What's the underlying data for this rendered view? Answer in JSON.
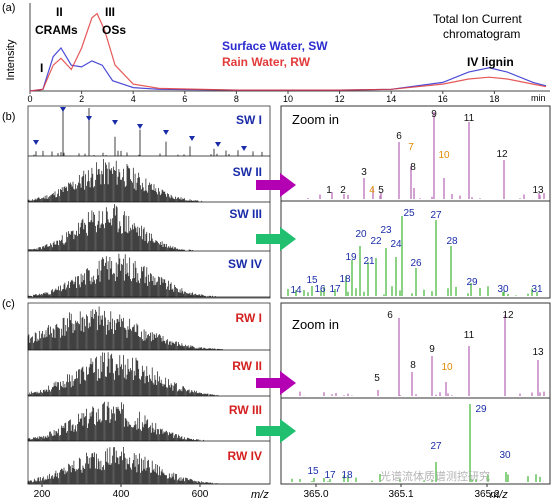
{
  "panel_a": {
    "label": "(a)",
    "ylabel": "Intensity",
    "peak_I": "I",
    "peak_II": "II",
    "peak_II_sub": "CRAMs",
    "peak_III": "III",
    "peak_III_sub": "OSs",
    "peak_IV": "IV lignin",
    "title_line1": "Total Ion Current",
    "title_line2": "chromatogram",
    "legend_sw": "Surface Water, SW",
    "legend_rw": "Rain Water, RW",
    "x_ticks": [
      "0",
      "2",
      "4",
      "6",
      "8",
      "10",
      "12",
      "14",
      "16",
      "18"
    ],
    "x_unit": "min",
    "colors": {
      "sw": "#2b2bd0",
      "rw": "#e23b3b"
    },
    "chart_data": {
      "type": "line",
      "xlim": [
        0,
        20
      ],
      "series": [
        {
          "name": "Surface Water, SW",
          "x": [
            0,
            0.5,
            0.9,
            1.2,
            1.6,
            2.0,
            2.4,
            2.8,
            3.2,
            4,
            5,
            8,
            12,
            14,
            16,
            17,
            17.8,
            18.5,
            19.5,
            20
          ],
          "y": [
            0,
            2,
            40,
            50,
            30,
            28,
            35,
            30,
            12,
            4,
            2,
            1,
            1,
            2,
            10,
            22,
            27,
            22,
            10,
            6
          ]
        },
        {
          "name": "Rain Water, RW",
          "x": [
            0,
            0.5,
            0.9,
            1.2,
            1.6,
            2.0,
            2.4,
            2.6,
            2.9,
            3.3,
            4,
            5,
            8,
            12,
            14,
            16,
            17,
            17.8,
            18.5,
            19.5,
            20
          ],
          "y": [
            0,
            2,
            30,
            38,
            25,
            50,
            85,
            90,
            70,
            30,
            8,
            3,
            1,
            1,
            2,
            8,
            14,
            16,
            14,
            8,
            5
          ]
        }
      ]
    }
  },
  "panel_b": {
    "label": "(b)",
    "spectra": [
      "SW I",
      "SW II",
      "SW III",
      "SW IV"
    ],
    "zoom_in": "Zoom in",
    "upper_peaks": [
      "1",
      "2",
      "3",
      "4",
      "5",
      "6",
      "7",
      "8",
      "9",
      "10",
      "11",
      "12",
      "13"
    ],
    "lower_peaks": [
      "14",
      "15",
      "16",
      "17",
      "18",
      "19",
      "20",
      "21",
      "22",
      "23",
      "24",
      "25",
      "26",
      "27",
      "28",
      "29",
      "30",
      "31"
    ]
  },
  "panel_c": {
    "label": "(c)",
    "spectra": [
      "RW I",
      "RW II",
      "RW III",
      "RW IV"
    ],
    "zoom_in": "Zoom in",
    "upper_peaks": [
      "5",
      "6",
      "8",
      "9",
      "10",
      "11",
      "12",
      "13"
    ],
    "lower_peaks": [
      "15",
      "17",
      "18",
      "27",
      "29",
      "30"
    ]
  },
  "axis_left": {
    "ticks": [
      "200",
      "400",
      "600"
    ],
    "unit": "m/z"
  },
  "axis_right": {
    "ticks": [
      "365.0",
      "365.1",
      "365.2"
    ],
    "unit": "m/z"
  },
  "watermark": "光谱流体质谱测控研究"
}
